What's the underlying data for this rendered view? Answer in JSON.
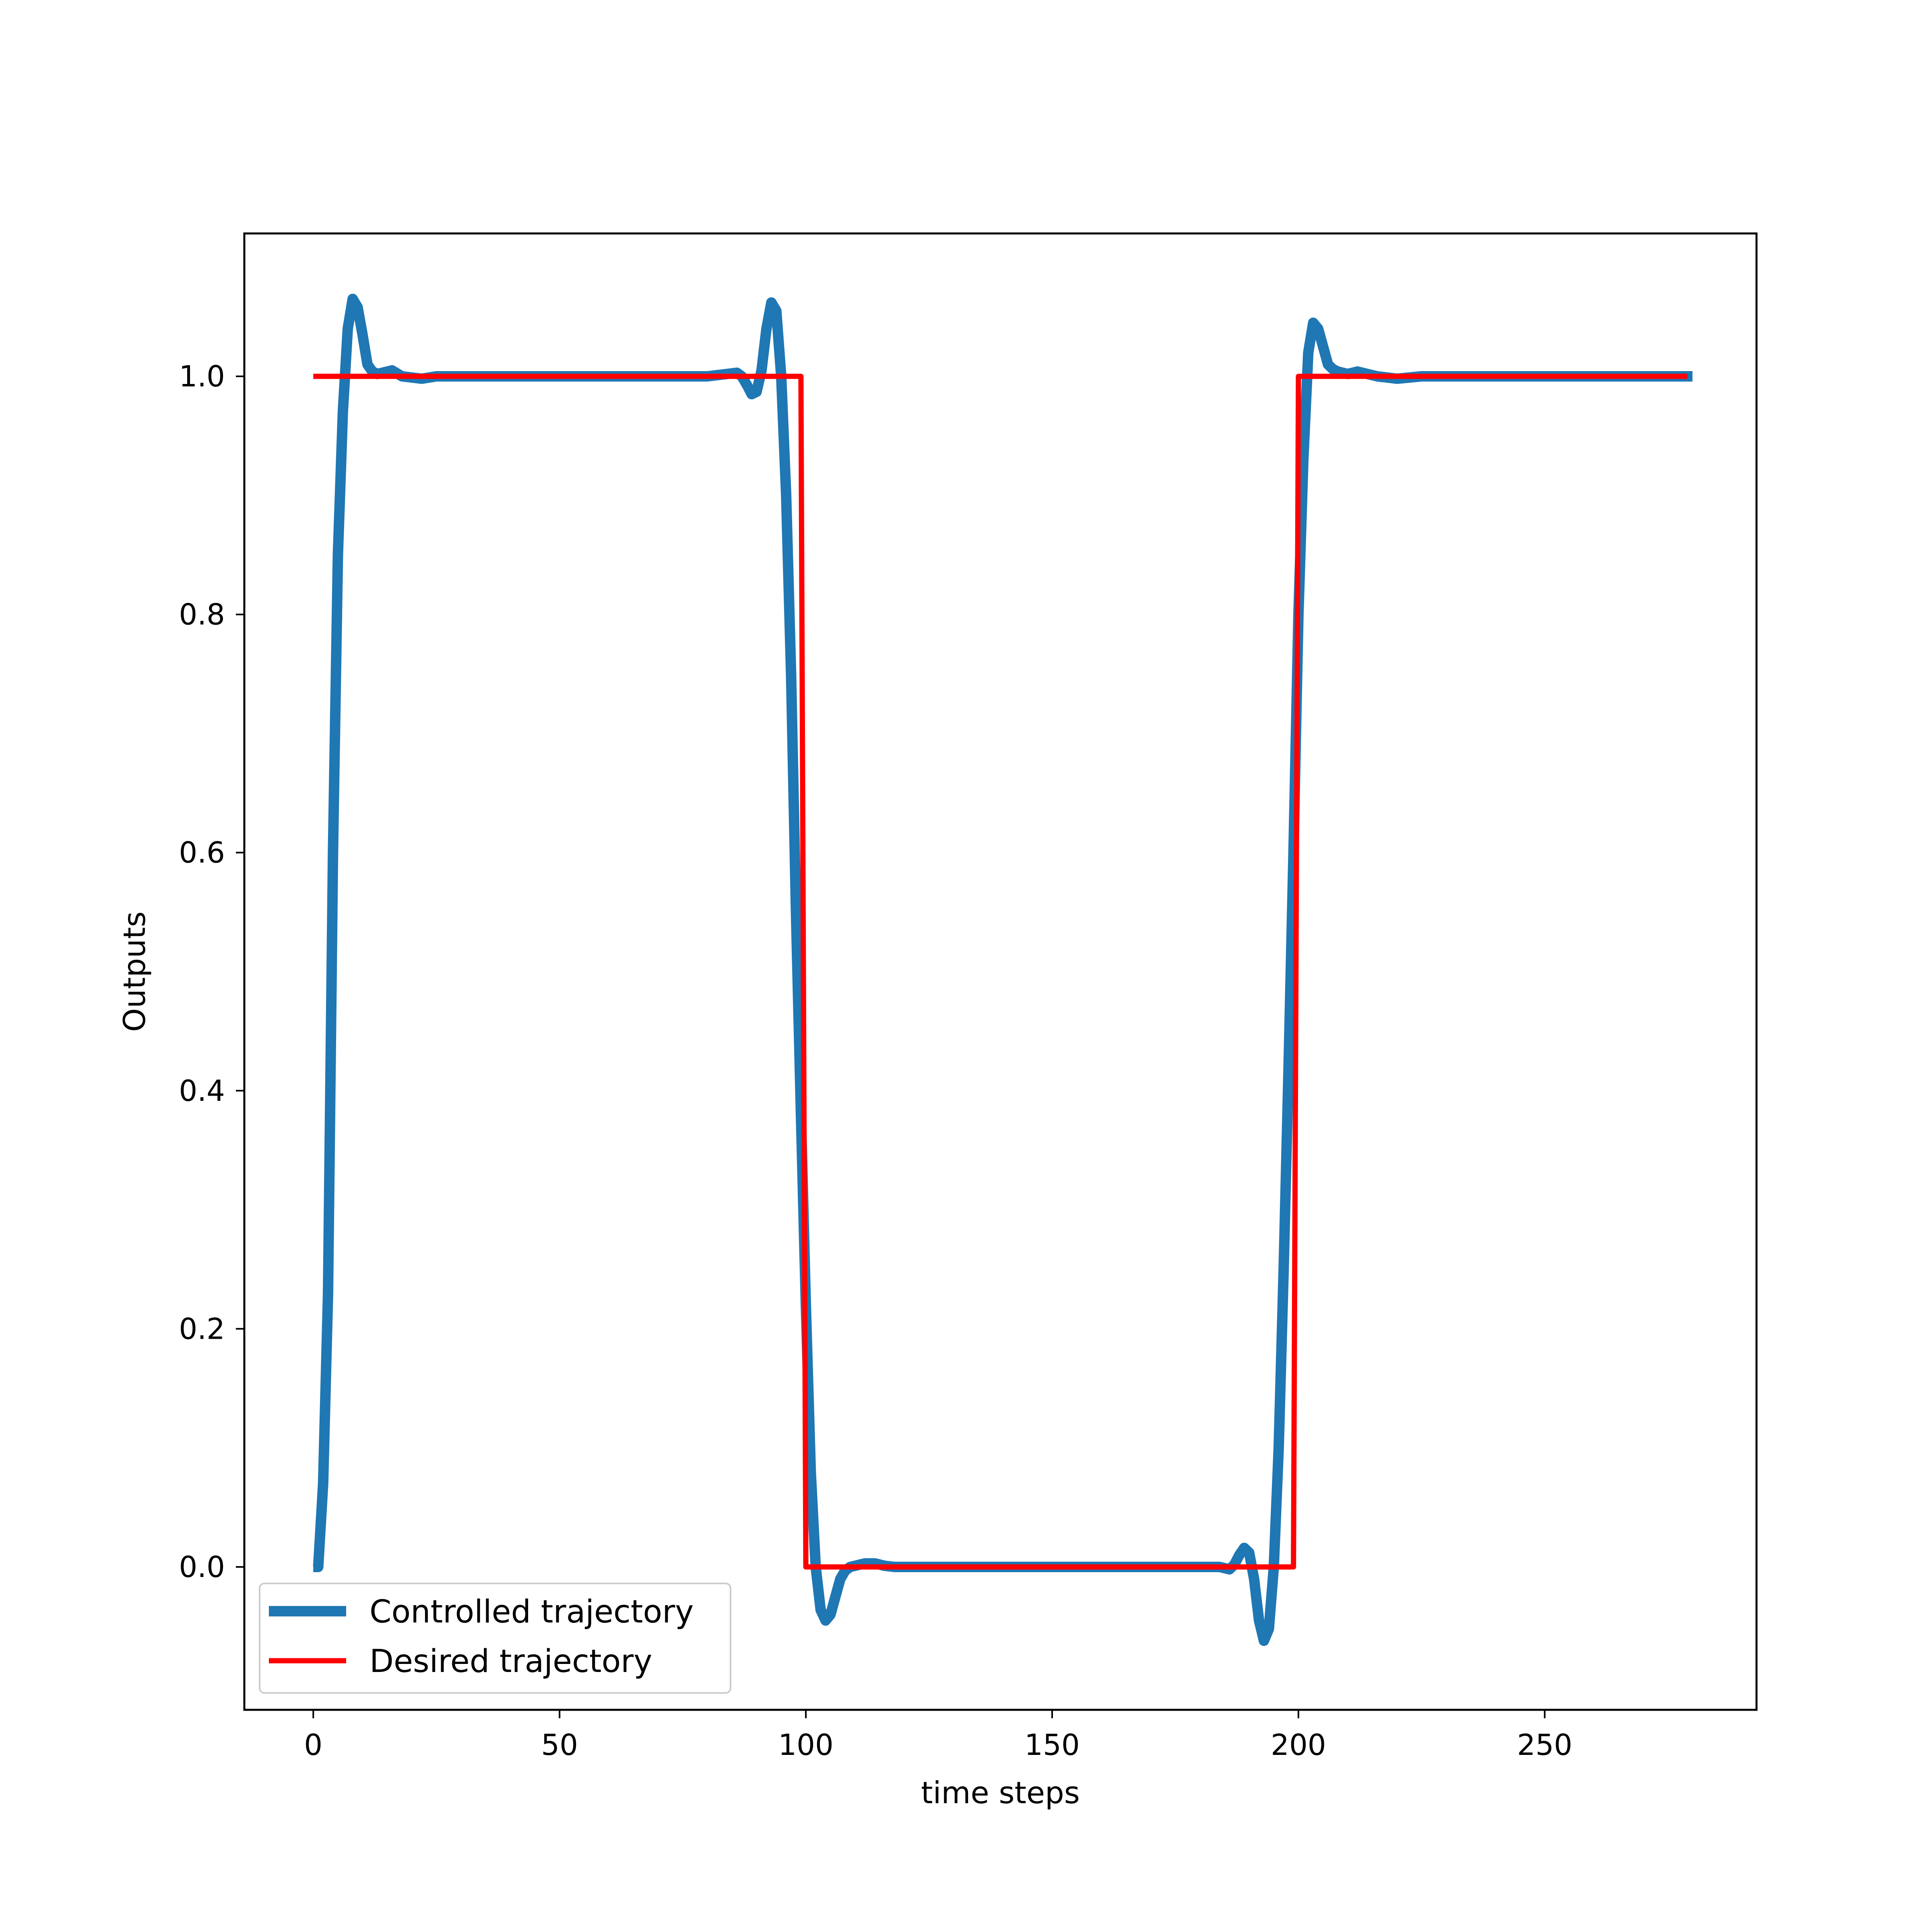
{
  "chart_data": {
    "type": "line",
    "title": "",
    "xlabel": "time steps",
    "ylabel": "Outputs",
    "xlim": [
      -14,
      293
    ],
    "ylim": [
      -0.12,
      1.12
    ],
    "xticks": [
      0,
      50,
      100,
      150,
      200,
      250
    ],
    "yticks": [
      0.0,
      0.2,
      0.4,
      0.6,
      0.8,
      1.0
    ],
    "grid": false,
    "legend_position": "lower-left",
    "series": [
      {
        "name": "Controlled trajectory",
        "color": "#1f77b4",
        "x": [
          0,
          1,
          2,
          3,
          4,
          5,
          6,
          7,
          8,
          9,
          10,
          11,
          12,
          13,
          14,
          16,
          18,
          20,
          22,
          25,
          30,
          40,
          60,
          80,
          84,
          86,
          87,
          88,
          89,
          90,
          91,
          92,
          93,
          94,
          95,
          96,
          97,
          98,
          99,
          100,
          101,
          102,
          103,
          104,
          105,
          106,
          107,
          108,
          109,
          110,
          111,
          112,
          114,
          116,
          118,
          120,
          125,
          130,
          150,
          180,
          184,
          186,
          187,
          188,
          189,
          190,
          191,
          192,
          193,
          194,
          195,
          196,
          197,
          198,
          199,
          200,
          201,
          202,
          203,
          204,
          205,
          206,
          207,
          208,
          209,
          210,
          211,
          212,
          214,
          216,
          218,
          220,
          225,
          230,
          250,
          280
        ],
        "y": [
          0.0,
          0.0,
          0.07,
          0.23,
          0.6,
          0.85,
          0.97,
          1.04,
          1.065,
          1.058,
          1.035,
          1.01,
          1.004,
          1.002,
          1.003,
          1.005,
          1.0,
          0.999,
          0.998,
          1.0,
          1.0,
          1.0,
          1.0,
          1.0,
          1.002,
          1.003,
          1.0,
          0.993,
          0.985,
          0.987,
          1.005,
          1.04,
          1.062,
          1.055,
          1.0,
          0.9,
          0.75,
          0.55,
          0.38,
          0.22,
          0.08,
          0.0,
          -0.036,
          -0.045,
          -0.04,
          -0.025,
          -0.01,
          -0.003,
          0.0,
          0.001,
          0.002,
          0.003,
          0.003,
          0.001,
          0.0,
          0.0,
          0.0,
          0.0,
          0.0,
          0.0,
          0.0,
          -0.002,
          0.002,
          0.01,
          0.016,
          0.012,
          -0.01,
          -0.045,
          -0.062,
          -0.052,
          0.0,
          0.1,
          0.25,
          0.42,
          0.6,
          0.8,
          0.93,
          1.02,
          1.045,
          1.04,
          1.025,
          1.01,
          1.006,
          1.004,
          1.003,
          1.002,
          1.003,
          1.004,
          1.002,
          1.0,
          0.999,
          0.998,
          1.0,
          1.0,
          1.0,
          1.0
        ]
      },
      {
        "name": "Desired trajectory",
        "color": "#ff0000",
        "x": [
          0,
          99,
          100,
          199,
          200,
          279
        ],
        "y": [
          1.0,
          1.0,
          0.0,
          0.0,
          1.0,
          1.0
        ]
      }
    ]
  }
}
